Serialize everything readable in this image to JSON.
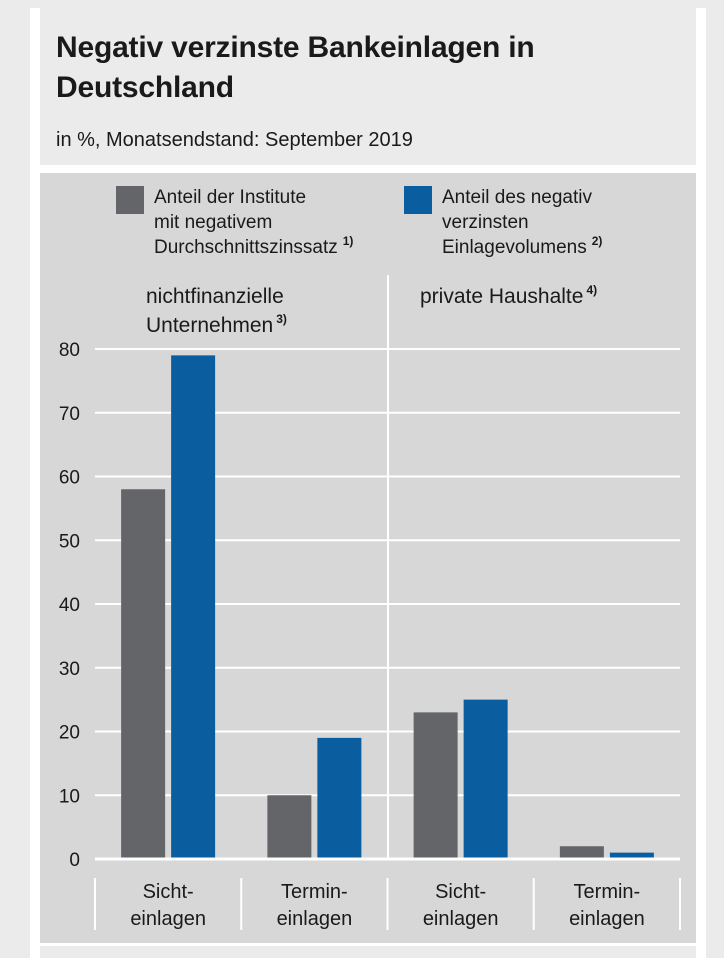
{
  "chart_data": {
    "type": "bar",
    "title": "Negativ verzinste Bankeinlagen in Deutschland",
    "subtitle": "in %, Monatsendstand: September 2019",
    "ylim": [
      0,
      80
    ],
    "y_ticks": [
      "0",
      "10",
      "20",
      "30",
      "40",
      "50",
      "60",
      "70",
      "80"
    ],
    "y_tick_values": [
      0,
      10,
      20,
      30,
      40,
      50,
      60,
      70,
      80
    ],
    "groups": [
      {
        "label_line1": "nichtfinanzielle",
        "label_line2": "Unternehmen",
        "label_sup": "3)"
      },
      {
        "label_line1": "private Haushalte",
        "label_sup": "4)"
      }
    ],
    "categories": [
      {
        "line1": "Sicht-",
        "line2": "einlagen"
      },
      {
        "line1": "Termin-",
        "line2": "einlagen"
      },
      {
        "line1": "Sicht-",
        "line2": "einlagen"
      },
      {
        "line1": "Termin-",
        "line2": "einlagen"
      }
    ],
    "series": [
      {
        "name_lines": [
          "Anteil der Institute",
          "mit negativem",
          "Durchschnittszinssatz"
        ],
        "name_sup": "1)",
        "color": "#646569",
        "values": [
          58,
          10,
          23,
          2
        ]
      },
      {
        "name_lines": [
          "Anteil des negativ",
          "verzinsten",
          "Einlagevolumens"
        ],
        "name_sup": "2)",
        "color": "#0a5d9e",
        "values": [
          79,
          19,
          25,
          1
        ]
      }
    ]
  }
}
